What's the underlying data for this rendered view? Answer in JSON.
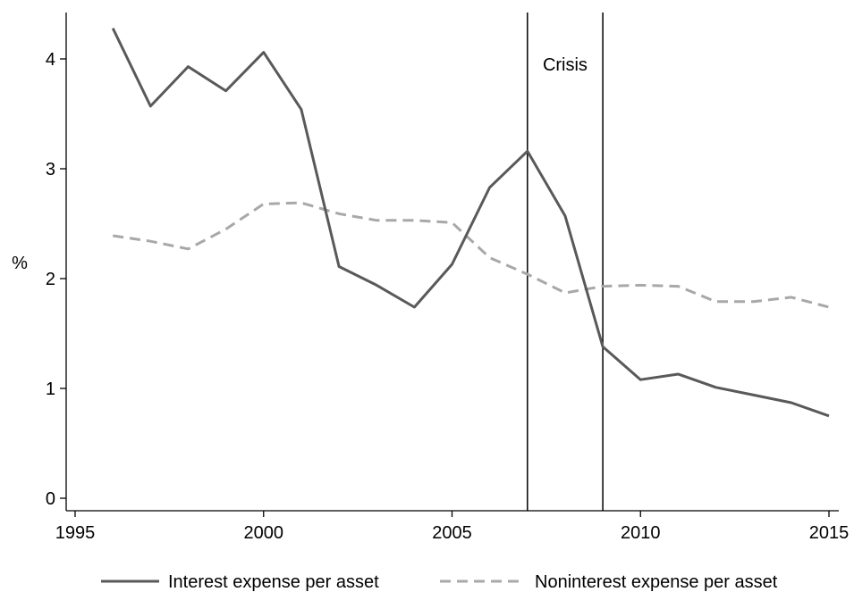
{
  "chart_data": {
    "type": "line",
    "ylabel": "%",
    "xlabel": "",
    "xlim": [
      1995,
      2015
    ],
    "ylim": [
      0,
      4.3
    ],
    "xticks": [
      1995,
      2000,
      2005,
      2010,
      2015
    ],
    "yticks": [
      0,
      1,
      2,
      3,
      4
    ],
    "grid": false,
    "legend_position": "bottom",
    "x": [
      1996,
      1997,
      1998,
      1999,
      2000,
      2001,
      2002,
      2003,
      2004,
      2005,
      2006,
      2007,
      2008,
      2009,
      2010,
      2011,
      2012,
      2013,
      2014,
      2015
    ],
    "series": [
      {
        "name": "Interest expense per asset",
        "color": "#595959",
        "style": "solid",
        "values": [
          4.28,
          3.57,
          3.93,
          3.71,
          4.06,
          3.54,
          2.11,
          1.94,
          1.74,
          2.13,
          2.83,
          3.16,
          2.57,
          1.38,
          1.08,
          1.13,
          1.01,
          0.94,
          0.87,
          0.75
        ]
      },
      {
        "name": "Noninterest expense per asset",
        "color": "#a8a8a8",
        "style": "dashed",
        "values": [
          2.39,
          2.34,
          2.27,
          2.45,
          2.68,
          2.69,
          2.59,
          2.53,
          2.53,
          2.51,
          2.19,
          2.04,
          1.87,
          1.93,
          1.94,
          1.93,
          1.79,
          1.79,
          1.83,
          1.74
        ]
      }
    ],
    "vlines": [
      2007,
      2009
    ],
    "annotations": [
      {
        "text": "Crisis",
        "x": 2008,
        "y": 3.95
      }
    ]
  }
}
